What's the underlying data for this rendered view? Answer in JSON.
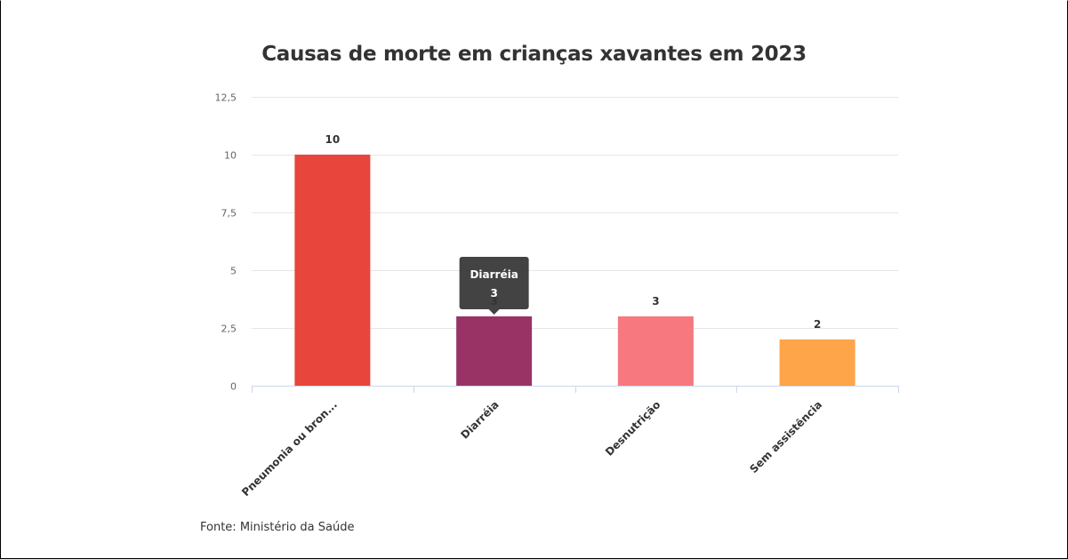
{
  "chart_data": {
    "type": "bar",
    "title": "Causas de morte em crianças xavantes em 2023",
    "categories": [
      "Pneumonia ou bron...",
      "Diarréia",
      "Desnutrição",
      "Sem assistência"
    ],
    "values": [
      10,
      3,
      3,
      2
    ],
    "data_labels": [
      "10",
      "3",
      "3",
      "2"
    ],
    "colors": [
      "#e8453c",
      "#993366",
      "#f7787f",
      "#fea449"
    ],
    "yticks": [
      "0",
      "2,5",
      "5",
      "7,5",
      "10",
      "12,5"
    ],
    "ylim": [
      0,
      12.5
    ],
    "grid": true,
    "tooltip": {
      "category": "Diarréia",
      "value": "3"
    }
  },
  "source": "Fonte: Ministério da Saúde"
}
